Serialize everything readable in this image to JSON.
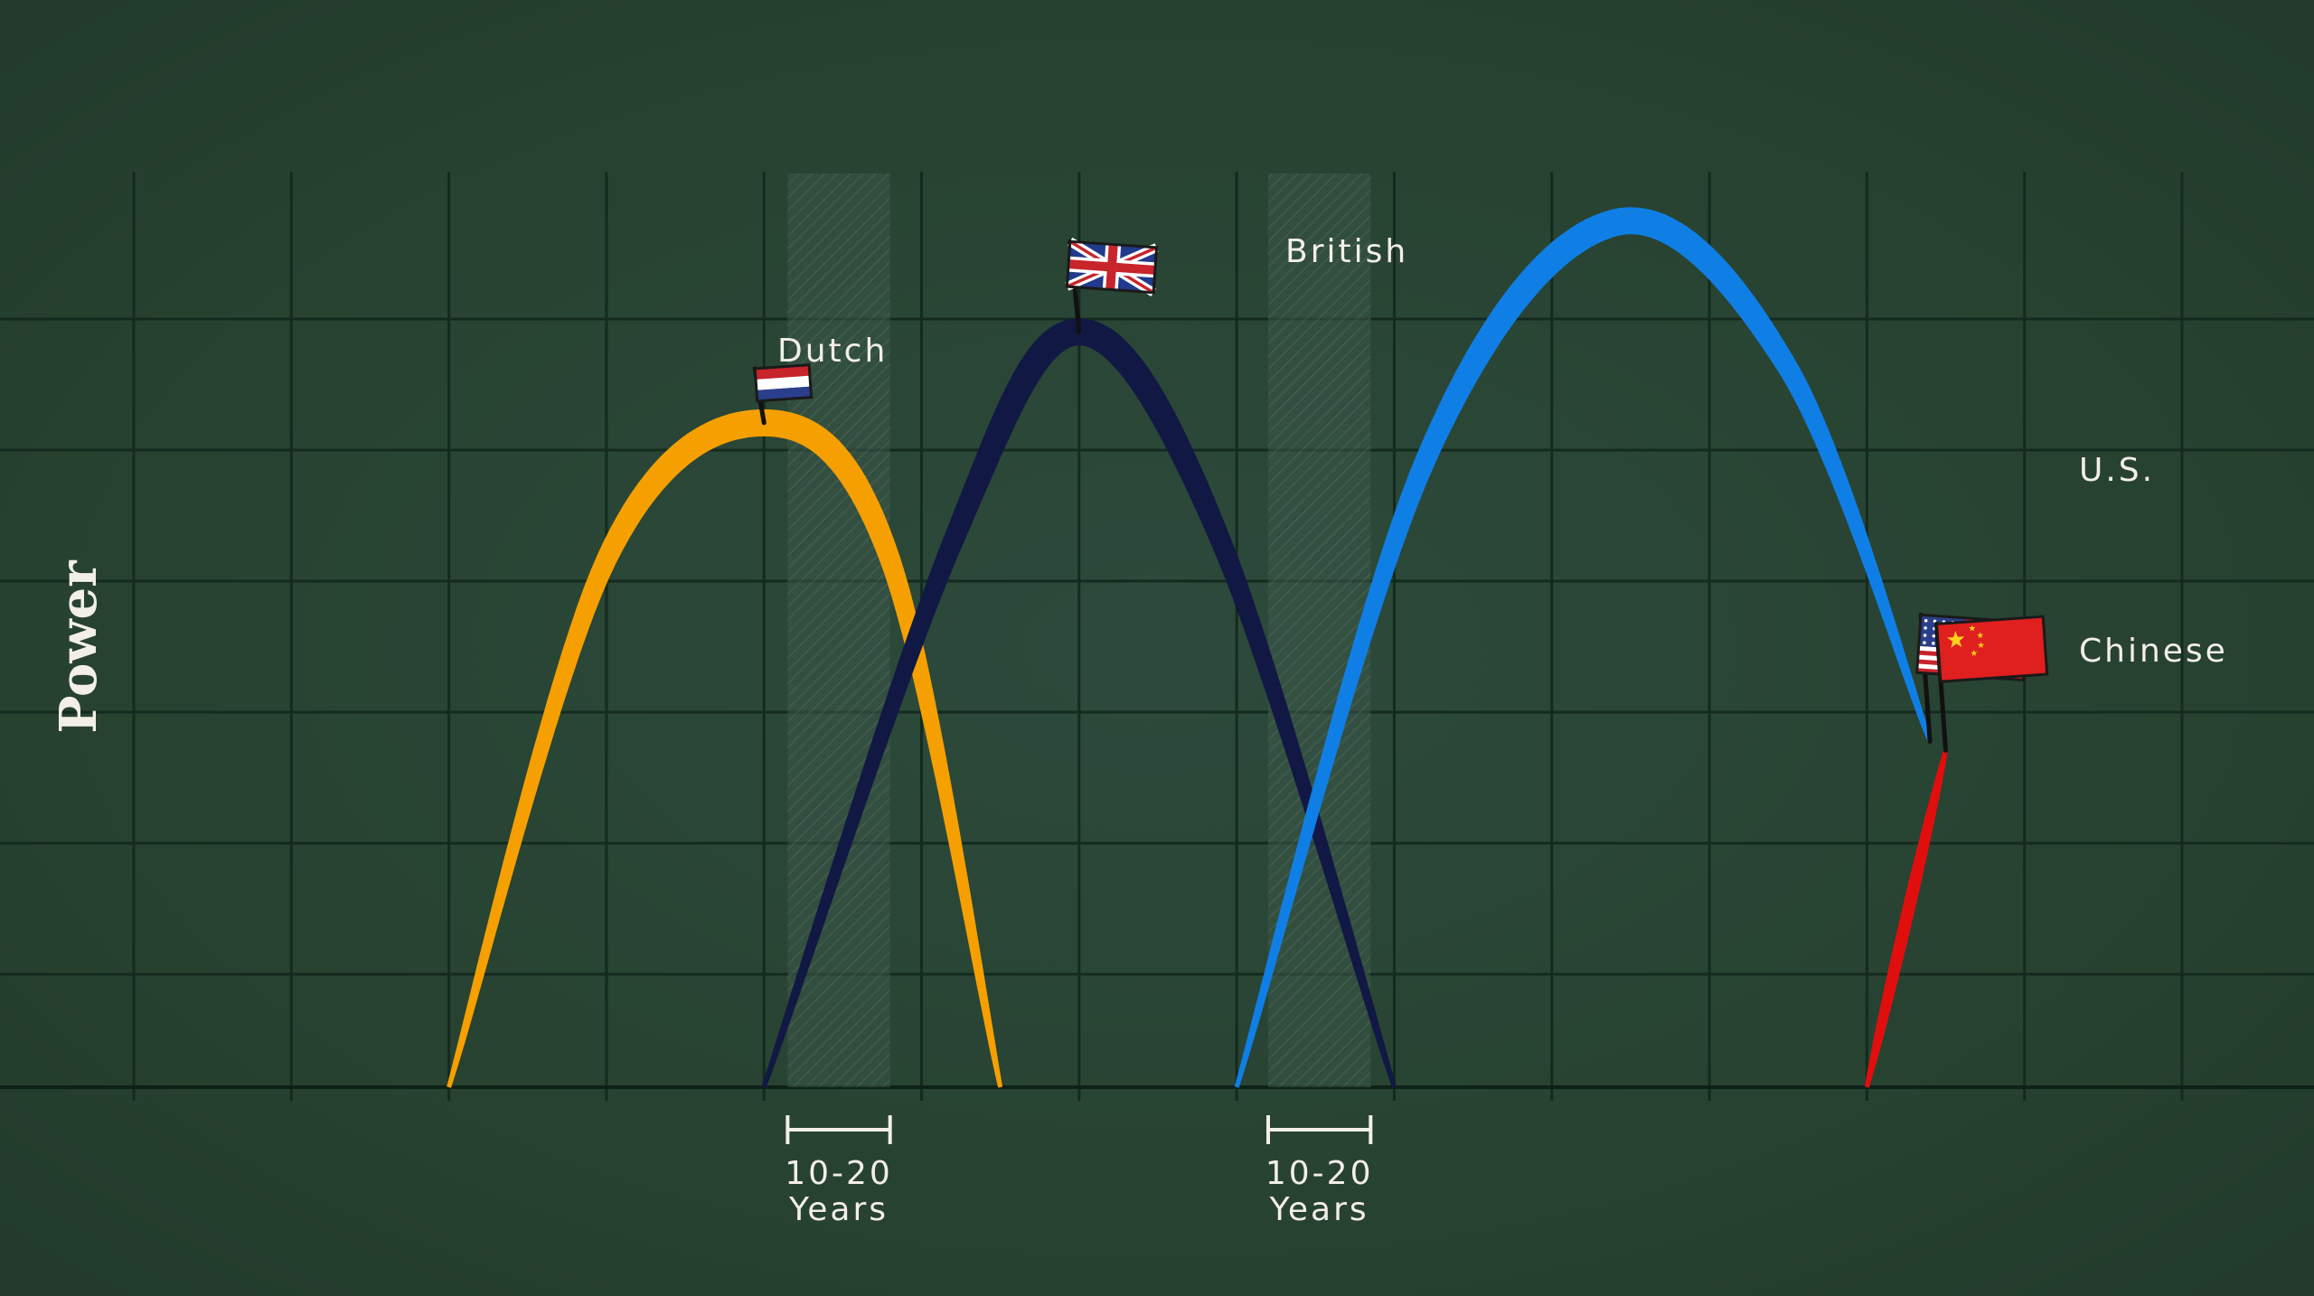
{
  "chart_data": {
    "type": "line",
    "title": "",
    "xlabel": "",
    "ylabel": "Power",
    "xlim": [
      0,
      13
    ],
    "ylim": [
      0,
      10
    ],
    "grid": true,
    "series": [
      {
        "name": "Dutch",
        "color": "#f5a000",
        "flag": "netherlands-flag",
        "x": [
          2.0,
          3.0,
          4.0,
          4.8,
          5.5
        ],
        "y": [
          0,
          5.8,
          7.3,
          5.8,
          0
        ]
      },
      {
        "name": "British",
        "color": "#111844",
        "flag": "uk-flag",
        "x": [
          4.0,
          5.2,
          6.0,
          6.9,
          8.0
        ],
        "y": [
          0,
          6.0,
          8.3,
          6.0,
          0
        ]
      },
      {
        "name": "U.S.",
        "color": "#0f7fe6",
        "flag": "us-flag",
        "x": [
          7.0,
          8.2,
          9.4,
          10.5,
          11.4
        ],
        "y": [
          0,
          6.9,
          9.5,
          7.9,
          3.8
        ]
      },
      {
        "name": "Chinese",
        "color": "#e10e0e",
        "flag": "china-flag",
        "x": [
          11.0,
          11.5
        ],
        "y": [
          0,
          3.7
        ]
      }
    ],
    "annotations": [
      {
        "label_line1": "10-20",
        "label_line2": "Years",
        "x_range": [
          4.15,
          4.8
        ]
      },
      {
        "label_line1": "10-20",
        "label_line2": "Years",
        "x_range": [
          7.2,
          7.85
        ]
      }
    ]
  }
}
